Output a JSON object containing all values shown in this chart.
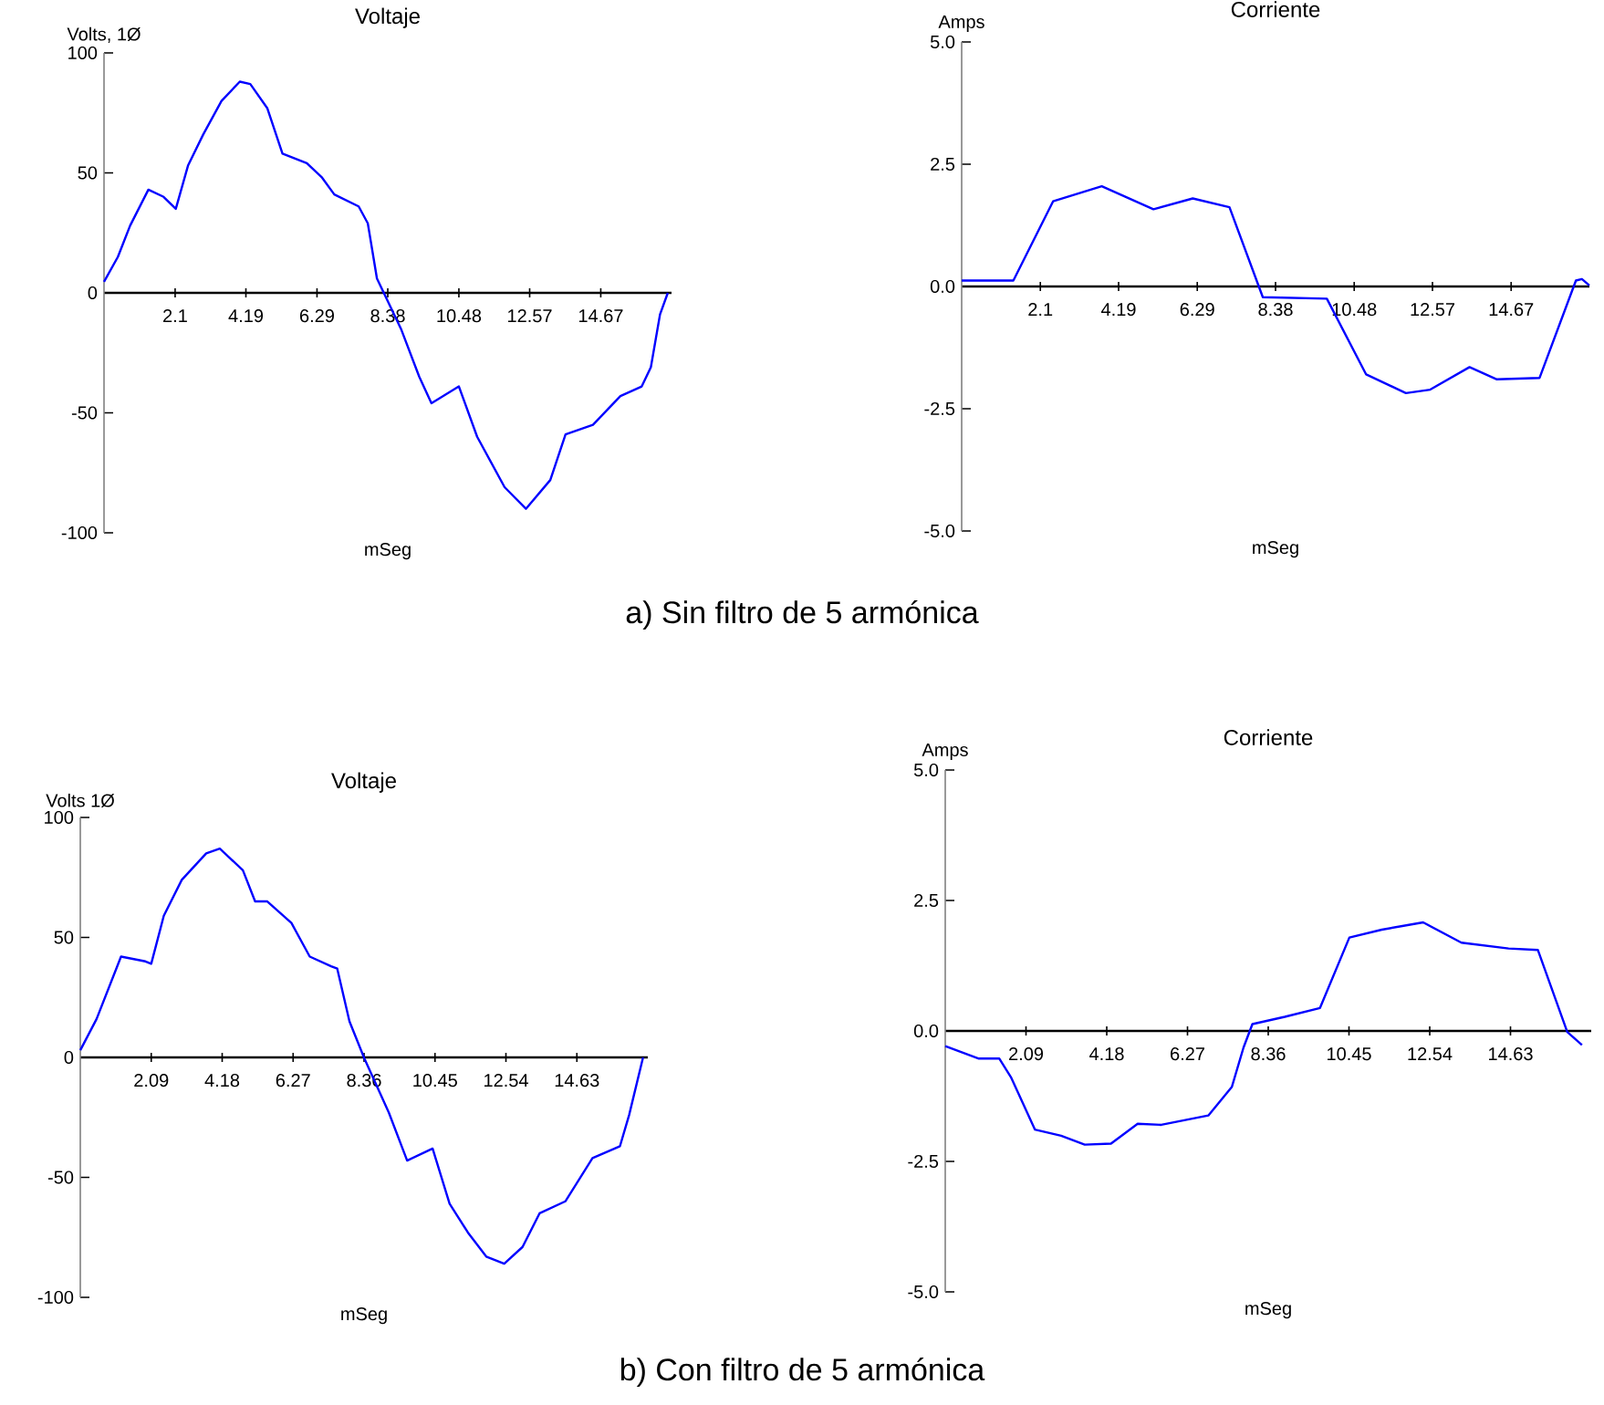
{
  "chart_data": [
    {
      "type": "line",
      "title": "Voltaje",
      "xlabel": "mSeg",
      "ylabel": "Volts, 1Ø",
      "xlim": [
        0,
        16.76
      ],
      "ylim": [
        -100,
        100
      ],
      "xticks": [
        2.1,
        4.19,
        6.29,
        8.38,
        10.48,
        12.57,
        14.67
      ],
      "yticks": [
        -100,
        -50,
        0,
        50,
        100
      ],
      "series": [
        {
          "color": "#0000ff",
          "x": [
            0,
            0.41,
            0.77,
            1.31,
            1.76,
            2.12,
            2.48,
            2.93,
            3.47,
            4.01,
            4.32,
            4.82,
            5.27,
            5.99,
            6.44,
            6.8,
            7.52,
            7.79,
            8.06,
            8.33,
            8.77,
            9.31,
            9.67,
            10.48,
            11.02,
            11.83,
            12.46,
            13.18,
            13.63,
            14.44,
            15.25,
            15.88,
            16.15,
            16.42,
            16.65
          ],
          "values": [
            4.6,
            15,
            28,
            43,
            40,
            35,
            53,
            66,
            80,
            88,
            87,
            77,
            58,
            54,
            48,
            41,
            36,
            29,
            6,
            -2,
            -15,
            -35,
            -46,
            -39,
            -60,
            -81,
            -90,
            -78,
            -59,
            -55,
            -43,
            -39,
            -31,
            -9,
            0
          ]
        }
      ],
      "annotations": [
        "a) Sin filtro de 5 armónica"
      ]
    },
    {
      "type": "line",
      "title": "Corriente",
      "xlabel": "mSeg",
      "ylabel": "Amps",
      "xlim": [
        0,
        16.76
      ],
      "ylim": [
        -5,
        5
      ],
      "xticks": [
        2.1,
        4.19,
        6.29,
        8.38,
        10.48,
        12.57,
        14.67
      ],
      "yticks": [
        {
          "value": -5,
          "label": "-5.0"
        },
        {
          "value": -2.5,
          "label": "-2.5"
        },
        {
          "value": 0,
          "label": "0.0"
        },
        {
          "value": 2.5,
          "label": "2.5"
        },
        {
          "value": 5,
          "label": "5.0"
        }
      ],
      "series": [
        {
          "color": "#0000ff",
          "x": [
            0,
            1.38,
            2.44,
            3.74,
            5.12,
            6.17,
            7.15,
            8.04,
            9.75,
            10.8,
            11.86,
            12.51,
            13.56,
            14.29,
            15.43,
            16.4,
            16.56,
            16.76
          ],
          "values": [
            0.12,
            0.12,
            1.74,
            2.05,
            1.58,
            1.8,
            1.62,
            -0.22,
            -0.25,
            -1.8,
            -2.18,
            -2.11,
            -1.65,
            -1.9,
            -1.87,
            0.12,
            0.15,
            0.02
          ]
        }
      ]
    },
    {
      "type": "line",
      "title": "Voltaje",
      "xlabel": "mSeg",
      "ylabel": "Volts  1Ø",
      "xlim": [
        0,
        16.72
      ],
      "ylim": [
        -100,
        100
      ],
      "xticks": [
        2.09,
        4.18,
        6.27,
        8.36,
        10.45,
        12.54,
        14.63
      ],
      "yticks": [
        -100,
        -50,
        0,
        50,
        100
      ],
      "series": [
        {
          "color": "#0000ff",
          "x": [
            0,
            0.48,
            1.2,
            1.92,
            2.09,
            2.46,
            2.99,
            3.71,
            4.11,
            4.79,
            5.15,
            5.51,
            6.22,
            6.76,
            7.39,
            7.57,
            7.93,
            8.37,
            9.09,
            9.63,
            10.38,
            10.88,
            11.42,
            11.96,
            12.49,
            13.03,
            13.53,
            14.29,
            15.09,
            15.9,
            16.17,
            16.58
          ],
          "values": [
            3,
            16,
            42,
            40,
            39,
            59,
            74,
            85,
            87,
            78,
            65,
            65,
            56,
            42,
            38,
            37,
            15,
            -0.5,
            -23,
            -43,
            -38,
            -61,
            -73,
            -83,
            -86,
            -79,
            -65,
            -60,
            -42,
            -37,
            -24,
            0
          ]
        }
      ],
      "annotations": [
        "b) Con filtro de 5 armónica"
      ]
    },
    {
      "type": "line",
      "title": "Corriente",
      "xlabel": "mSeg",
      "ylabel": "Amps",
      "xlim": [
        0,
        16.72
      ],
      "ylim": [
        -5,
        5
      ],
      "xticks": [
        2.09,
        4.18,
        6.27,
        8.36,
        10.45,
        12.54,
        14.63
      ],
      "yticks": [
        {
          "value": -5,
          "label": "-5.0"
        },
        {
          "value": -2.5,
          "label": "-2.5"
        },
        {
          "value": 0,
          "label": "0.0"
        },
        {
          "value": 2.5,
          "label": "2.5"
        },
        {
          "value": 5,
          "label": "5.0"
        }
      ],
      "series": [
        {
          "color": "#0000ff",
          "x": [
            0,
            0.87,
            1.4,
            1.71,
            2.32,
            3.0,
            3.61,
            4.29,
            4.98,
            5.59,
            6.81,
            7.42,
            7.72,
            7.95,
            8.79,
            9.7,
            10.46,
            11.3,
            12.37,
            13.36,
            14.58,
            15.34,
            16.1,
            16.48
          ],
          "values": [
            -0.29,
            -0.53,
            -0.53,
            -0.9,
            -1.89,
            -2.01,
            -2.18,
            -2.16,
            -1.78,
            -1.8,
            -1.62,
            -1.07,
            -0.32,
            0.13,
            0.27,
            0.44,
            1.79,
            1.94,
            2.08,
            1.69,
            1.58,
            1.55,
            -0.02,
            -0.27
          ]
        }
      ]
    }
  ]
}
